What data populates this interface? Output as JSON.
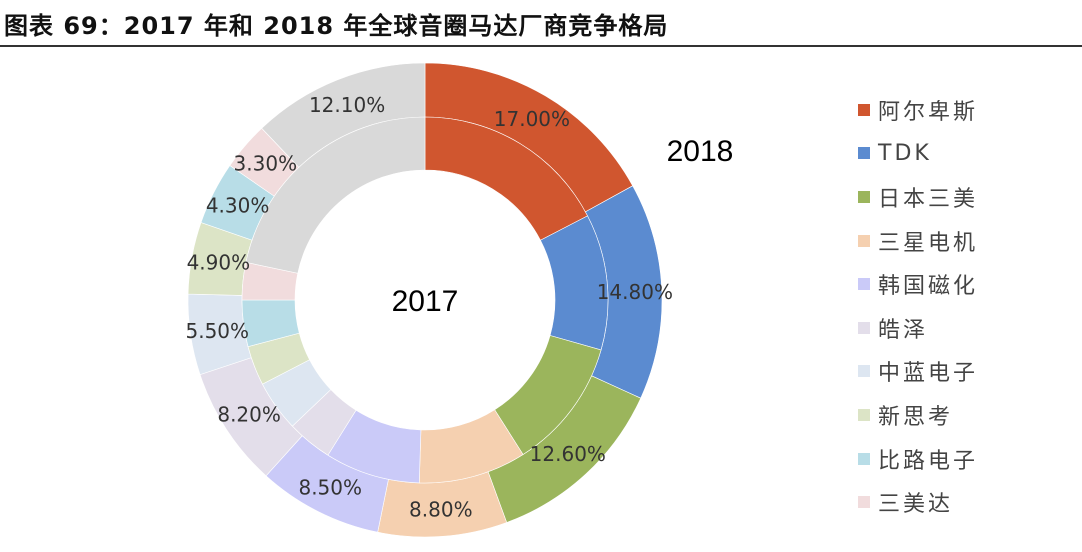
{
  "title": "图表 69：2017 年和 2018 年全球音圈马达厂商竞争格局",
  "chart_data": {
    "type": "donut",
    "categories": [
      "阿尔卑斯",
      "TDK",
      "日本三美",
      "三星电机",
      "韩国磁化",
      "皓泽",
      "中蓝电子",
      "新思考",
      "比路电子",
      "三美达",
      ""
    ],
    "colors": [
      "#D0562F",
      "#5B8BD0",
      "#9BB55C",
      "#F5D0B0",
      "#CACAF8",
      "#E3DEEA",
      "#DDE6F1",
      "#DCE4C6",
      "#B8DDE7",
      "#F1DCDD",
      "#D9D9D9"
    ],
    "series": [
      {
        "name": "2018",
        "ring": "outer",
        "values": [
          17.0,
          14.8,
          12.6,
          8.8,
          8.5,
          8.2,
          5.5,
          4.9,
          4.3,
          3.3,
          12.1
        ],
        "labels": [
          "17.00%",
          "14.80%",
          "12.60%",
          "8.80%",
          "8.50%",
          "8.20%",
          "5.50%",
          "4.90%",
          "4.30%",
          "3.30%",
          "12.10%"
        ]
      },
      {
        "name": "2017",
        "ring": "inner",
        "values": [
          17.4,
          12.0,
          11.6,
          9.5,
          8.4,
          4.0,
          4.5,
          3.5,
          4.1,
          3.3,
          21.7
        ]
      }
    ],
    "legend": "right"
  }
}
